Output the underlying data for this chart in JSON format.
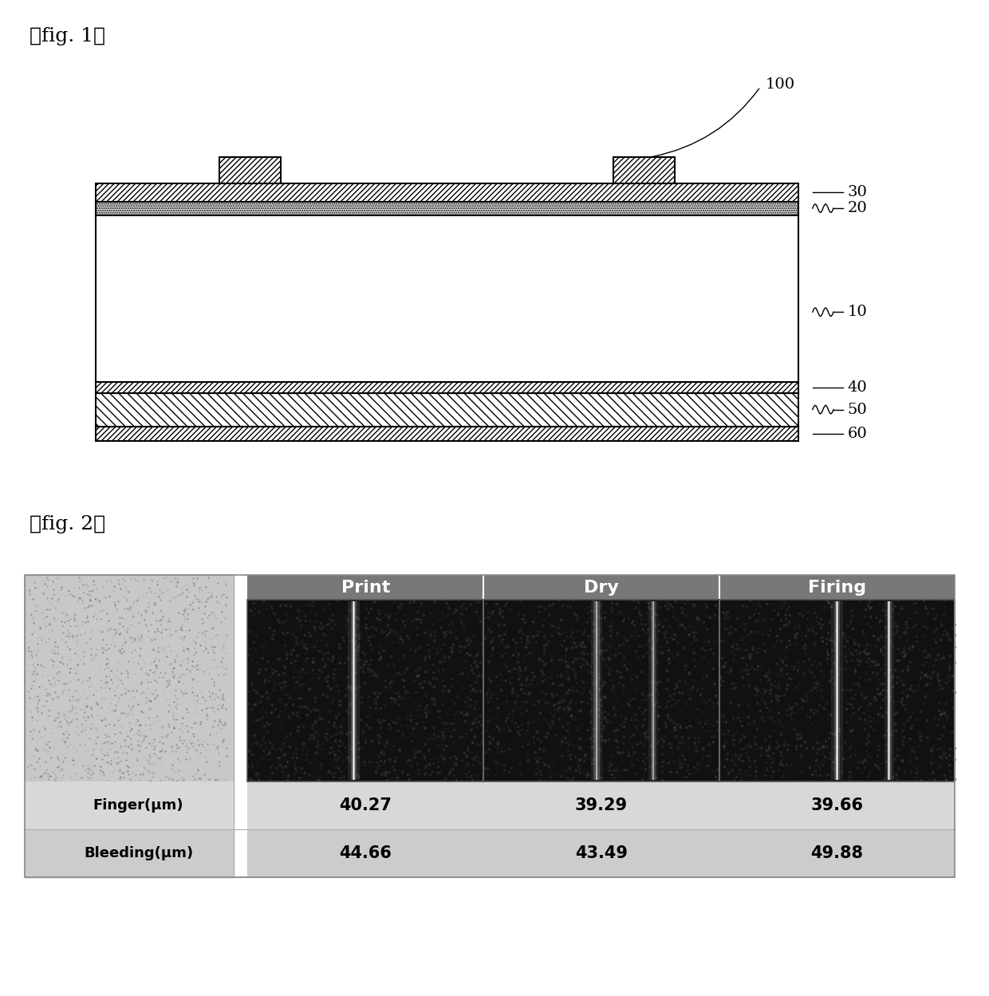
{
  "fig1_label": "【fig. 1】",
  "fig2_label": "【fig. 2】",
  "col_headers": [
    "Print",
    "Dry",
    "Firing"
  ],
  "row_labels": [
    "Finger(μm)",
    "Bleeding(μm)"
  ],
  "table_data": [
    [
      "40.27",
      "39.29",
      "39.66"
    ],
    [
      "44.66",
      "43.49",
      "49.88"
    ]
  ],
  "header_bg": "#787878",
  "header_text": "#ffffff",
  "bg_color": "#ffffff"
}
